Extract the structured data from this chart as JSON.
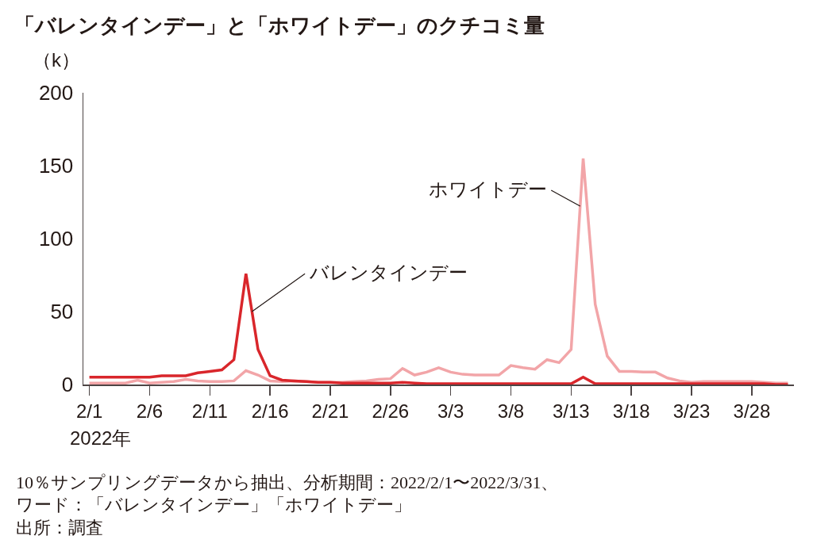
{
  "chart_data": {
    "type": "line",
    "title": "「バレンタインデー」と「ホワイトデー」のクチコミ量",
    "xlabel": "2022年",
    "ylabel": "（k）",
    "annotations": [
      "10％サンプリングデータから抽出、分析期間：2022/2/1〜2022/3/31、",
      "ワード：「バレンタインデー」「ホワイトデー」",
      "出所：調査"
    ],
    "x": [
      "2022-02-01",
      "2022-02-02",
      "2022-02-03",
      "2022-02-04",
      "2022-02-05",
      "2022-02-06",
      "2022-02-07",
      "2022-02-08",
      "2022-02-09",
      "2022-02-10",
      "2022-02-11",
      "2022-02-12",
      "2022-02-13",
      "2022-02-14",
      "2022-02-15",
      "2022-02-16",
      "2022-02-17",
      "2022-02-18",
      "2022-02-19",
      "2022-02-20",
      "2022-02-21",
      "2022-02-22",
      "2022-02-23",
      "2022-02-24",
      "2022-02-25",
      "2022-02-26",
      "2022-02-27",
      "2022-02-28",
      "2022-03-01",
      "2022-03-02",
      "2022-03-03",
      "2022-03-04",
      "2022-03-05",
      "2022-03-06",
      "2022-03-07",
      "2022-03-08",
      "2022-03-09",
      "2022-03-10",
      "2022-03-11",
      "2022-03-12",
      "2022-03-13",
      "2022-03-14",
      "2022-03-15",
      "2022-03-16",
      "2022-03-17",
      "2022-03-18",
      "2022-03-19",
      "2022-03-20",
      "2022-03-21",
      "2022-03-22",
      "2022-03-23",
      "2022-03-24",
      "2022-03-25",
      "2022-03-26",
      "2022-03-27",
      "2022-03-28",
      "2022-03-29",
      "2022-03-30",
      "2022-03-31"
    ],
    "series": [
      {
        "name": "バレンタインデー",
        "color": "#d9262b",
        "values": [
          5,
          5,
          5,
          5,
          5,
          5,
          6,
          6,
          6,
          8,
          9,
          10,
          17,
          76,
          24,
          6,
          3,
          2.5,
          2,
          1.5,
          1.5,
          1,
          1,
          1,
          1,
          1,
          1.5,
          1,
          0.5,
          0.5,
          0.5,
          0.5,
          0.5,
          0.5,
          0.5,
          0.5,
          0.5,
          0.5,
          0.5,
          0.5,
          0.5,
          5,
          0.5,
          0.5,
          0.5,
          0.5,
          0.5,
          0.5,
          0.5,
          0.5,
          0.5,
          0.5,
          0.5,
          0.5,
          0.5,
          0.5,
          0.5,
          0,
          0
        ]
      },
      {
        "name": "ホワイトデー",
        "color": "#f2a5a8",
        "values": [
          1,
          1,
          1,
          1,
          3,
          1,
          1.5,
          2,
          3.5,
          2.5,
          2,
          2,
          2.5,
          9.5,
          6.5,
          2.5,
          2,
          2.5,
          2,
          1.5,
          1.5,
          1.5,
          2,
          2.5,
          3.5,
          4,
          11,
          6.5,
          8.5,
          11.5,
          8.5,
          7,
          6.5,
          6.5,
          6.5,
          13,
          11.5,
          10.5,
          17,
          15,
          24,
          155,
          55,
          19.5,
          9,
          9,
          8.5,
          8.5,
          4.5,
          2.5,
          1.5,
          2,
          2,
          2,
          2,
          2,
          1.5,
          1,
          1
        ]
      }
    ],
    "xlim": [
      "2022-01-31T12:00",
      "2022-03-31T12:00"
    ],
    "ylim": [
      0,
      200
    ],
    "xticks": [
      {
        "value": "2022-02-01",
        "label": "2/1"
      },
      {
        "value": "2022-02-06",
        "label": "2/6"
      },
      {
        "value": "2022-02-11",
        "label": "2/11"
      },
      {
        "value": "2022-02-16",
        "label": "2/16"
      },
      {
        "value": "2022-02-21",
        "label": "2/21"
      },
      {
        "value": "2022-02-26",
        "label": "2/26"
      },
      {
        "value": "2022-03-03",
        "label": "3/3"
      },
      {
        "value": "2022-03-08",
        "label": "3/8"
      },
      {
        "value": "2022-03-13",
        "label": "3/13"
      },
      {
        "value": "2022-03-18",
        "label": "3/18"
      },
      {
        "value": "2022-03-23",
        "label": "3/23"
      },
      {
        "value": "2022-03-28",
        "label": "3/28"
      }
    ],
    "yticks": [
      0,
      50,
      100,
      150,
      200
    ],
    "grid": false,
    "legend": false,
    "marker": "none",
    "line_style": "solid"
  }
}
